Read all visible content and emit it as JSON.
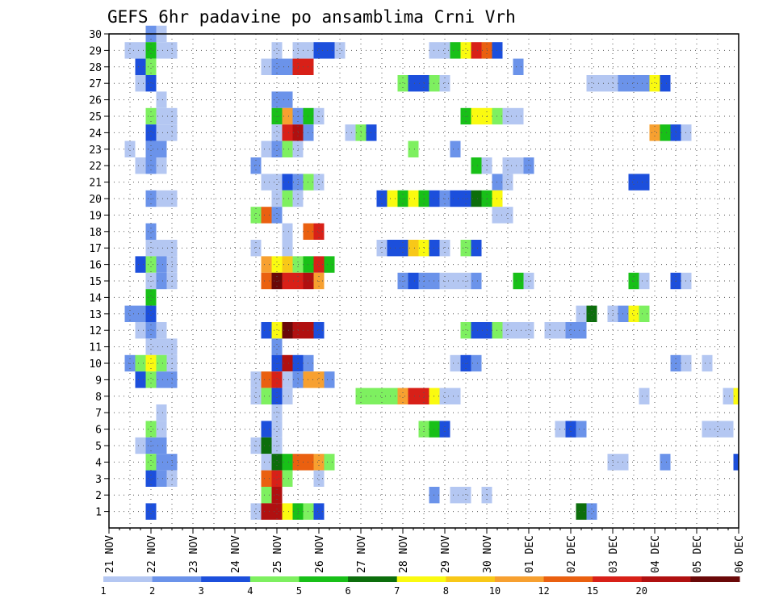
{
  "chart_data": {
    "type": "heatmap",
    "title": "GEFS 6hr padavine po ansamblima Crni Vrh",
    "xlabel": "",
    "ylabel": "",
    "x_unit": "6-hour step",
    "xlim": [
      0,
      60
    ],
    "x_ticks": [
      {
        "x": 0,
        "label": "21 NOV"
      },
      {
        "x": 4,
        "label": "22 NOV"
      },
      {
        "x": 8,
        "label": "23 NOV"
      },
      {
        "x": 12,
        "label": "24 NOV"
      },
      {
        "x": 16,
        "label": "25 NOV"
      },
      {
        "x": 20,
        "label": "26 NOV"
      },
      {
        "x": 24,
        "label": "27 NOV"
      },
      {
        "x": 28,
        "label": "28 NOV"
      },
      {
        "x": 32,
        "label": "29 NOV"
      },
      {
        "x": 36,
        "label": "30 NOV"
      },
      {
        "x": 40,
        "label": "01 DEC"
      },
      {
        "x": 44,
        "label": "02 DEC"
      },
      {
        "x": 48,
        "label": "03 DEC"
      },
      {
        "x": 52,
        "label": "04 DEC"
      },
      {
        "x": 56,
        "label": "05 DEC"
      },
      {
        "x": 60,
        "label": "06 DEC"
      }
    ],
    "ylim": [
      0,
      30
    ],
    "y_ticks": [
      1,
      2,
      3,
      4,
      5,
      6,
      7,
      8,
      9,
      10,
      11,
      12,
      13,
      14,
      15,
      16,
      17,
      18,
      19,
      20,
      21,
      22,
      23,
      24,
      25,
      26,
      27,
      28,
      29,
      30
    ],
    "grid": true,
    "colorbar": {
      "position": "bottom",
      "bounds_labels": [
        "1",
        "2",
        "3",
        "4",
        "5",
        "6",
        "7",
        "8",
        "10",
        "12",
        "15",
        "20",
        ""
      ],
      "colors": [
        "#b4c7f2",
        "#6b93ea",
        "#1c4fdc",
        "#7ef060",
        "#18c018",
        "#0c6e0c",
        "#fafa10",
        "#f8c818",
        "#f7a030",
        "#ea6010",
        "#d82018",
        "#b01010",
        "#6a0808"
      ]
    },
    "cells": [
      [
        4,
        30,
        2
      ],
      [
        5,
        30,
        1
      ],
      [
        2,
        29,
        1
      ],
      [
        3,
        29,
        1
      ],
      [
        4,
        29,
        5
      ],
      [
        5,
        29,
        1
      ],
      [
        6,
        29,
        1
      ],
      [
        16,
        29,
        1
      ],
      [
        18,
        29,
        1
      ],
      [
        19,
        29,
        1
      ],
      [
        20,
        29,
        3
      ],
      [
        21,
        29,
        3
      ],
      [
        22,
        29,
        1
      ],
      [
        31,
        29,
        1
      ],
      [
        32,
        29,
        1
      ],
      [
        33,
        29,
        5
      ],
      [
        34,
        29,
        7
      ],
      [
        35,
        29,
        11
      ],
      [
        36,
        29,
        10
      ],
      [
        37,
        29,
        3
      ],
      [
        3,
        28,
        3
      ],
      [
        4,
        28,
        4
      ],
      [
        15,
        28,
        1
      ],
      [
        16,
        28,
        2
      ],
      [
        17,
        28,
        2
      ],
      [
        18,
        28,
        11
      ],
      [
        19,
        28,
        11
      ],
      [
        39,
        28,
        2
      ],
      [
        3,
        27,
        1
      ],
      [
        4,
        27,
        3
      ],
      [
        28,
        27,
        4
      ],
      [
        29,
        27,
        3
      ],
      [
        30,
        27,
        3
      ],
      [
        31,
        27,
        4
      ],
      [
        32,
        27,
        1
      ],
      [
        46,
        27,
        1
      ],
      [
        47,
        27,
        1
      ],
      [
        48,
        27,
        1
      ],
      [
        49,
        27,
        2
      ],
      [
        50,
        27,
        2
      ],
      [
        51,
        27,
        2
      ],
      [
        52,
        27,
        7
      ],
      [
        53,
        27,
        3
      ],
      [
        5,
        26,
        1
      ],
      [
        16,
        26,
        2
      ],
      [
        17,
        26,
        2
      ],
      [
        4,
        25,
        4
      ],
      [
        5,
        25,
        1
      ],
      [
        6,
        25,
        1
      ],
      [
        16,
        25,
        5
      ],
      [
        17,
        25,
        9
      ],
      [
        18,
        25,
        2
      ],
      [
        19,
        25,
        5
      ],
      [
        20,
        25,
        1
      ],
      [
        34,
        25,
        5
      ],
      [
        35,
        25,
        7
      ],
      [
        36,
        25,
        7
      ],
      [
        37,
        25,
        4
      ],
      [
        38,
        25,
        1
      ],
      [
        39,
        25,
        1
      ],
      [
        4,
        24,
        3
      ],
      [
        5,
        24,
        1
      ],
      [
        6,
        24,
        1
      ],
      [
        16,
        24,
        1
      ],
      [
        17,
        24,
        11
      ],
      [
        18,
        24,
        12
      ],
      [
        19,
        24,
        2
      ],
      [
        23,
        24,
        1
      ],
      [
        24,
        24,
        4
      ],
      [
        25,
        24,
        3
      ],
      [
        52,
        24,
        9
      ],
      [
        53,
        24,
        5
      ],
      [
        54,
        24,
        3
      ],
      [
        55,
        24,
        1
      ],
      [
        2,
        23,
        1
      ],
      [
        4,
        23,
        2
      ],
      [
        5,
        23,
        2
      ],
      [
        15,
        23,
        1
      ],
      [
        16,
        23,
        2
      ],
      [
        17,
        23,
        4
      ],
      [
        18,
        23,
        1
      ],
      [
        29,
        23,
        4
      ],
      [
        33,
        23,
        2
      ],
      [
        3,
        22,
        1
      ],
      [
        4,
        22,
        2
      ],
      [
        5,
        22,
        1
      ],
      [
        14,
        22,
        2
      ],
      [
        35,
        22,
        5
      ],
      [
        36,
        22,
        1
      ],
      [
        38,
        22,
        1
      ],
      [
        39,
        22,
        1
      ],
      [
        40,
        22,
        2
      ],
      [
        15,
        21,
        1
      ],
      [
        16,
        21,
        1
      ],
      [
        17,
        21,
        3
      ],
      [
        18,
        21,
        2
      ],
      [
        19,
        21,
        4
      ],
      [
        20,
        21,
        1
      ],
      [
        37,
        21,
        2
      ],
      [
        38,
        21,
        1
      ],
      [
        50,
        21,
        3
      ],
      [
        51,
        21,
        3
      ],
      [
        4,
        20,
        2
      ],
      [
        5,
        20,
        1
      ],
      [
        6,
        20,
        1
      ],
      [
        16,
        20,
        1
      ],
      [
        17,
        20,
        4
      ],
      [
        18,
        20,
        1
      ],
      [
        26,
        20,
        3
      ],
      [
        27,
        20,
        7
      ],
      [
        28,
        20,
        5
      ],
      [
        29,
        20,
        7
      ],
      [
        30,
        20,
        5
      ],
      [
        31,
        20,
        3
      ],
      [
        32,
        20,
        2
      ],
      [
        33,
        20,
        3
      ],
      [
        34,
        20,
        3
      ],
      [
        35,
        20,
        6
      ],
      [
        36,
        20,
        5
      ],
      [
        37,
        20,
        7
      ],
      [
        14,
        19,
        4
      ],
      [
        15,
        19,
        10
      ],
      [
        16,
        19,
        2
      ],
      [
        37,
        19,
        1
      ],
      [
        38,
        19,
        1
      ],
      [
        4,
        18,
        2
      ],
      [
        17,
        18,
        1
      ],
      [
        19,
        18,
        10
      ],
      [
        20,
        18,
        11
      ],
      [
        4,
        17,
        1
      ],
      [
        5,
        17,
        1
      ],
      [
        6,
        17,
        1
      ],
      [
        14,
        17,
        1
      ],
      [
        17,
        17,
        1
      ],
      [
        26,
        17,
        1
      ],
      [
        27,
        17,
        3
      ],
      [
        28,
        17,
        3
      ],
      [
        29,
        17,
        8
      ],
      [
        30,
        17,
        7
      ],
      [
        31,
        17,
        3
      ],
      [
        32,
        17,
        1
      ],
      [
        34,
        17,
        4
      ],
      [
        35,
        17,
        3
      ],
      [
        3,
        16,
        3
      ],
      [
        4,
        16,
        4
      ],
      [
        5,
        16,
        2
      ],
      [
        6,
        16,
        1
      ],
      [
        15,
        16,
        9
      ],
      [
        16,
        16,
        7
      ],
      [
        17,
        16,
        8
      ],
      [
        18,
        16,
        4
      ],
      [
        19,
        16,
        5
      ],
      [
        20,
        16,
        11
      ],
      [
        21,
        16,
        5
      ],
      [
        4,
        15,
        1
      ],
      [
        5,
        15,
        2
      ],
      [
        6,
        15,
        1
      ],
      [
        15,
        15,
        10
      ],
      [
        16,
        15,
        13
      ],
      [
        17,
        15,
        11
      ],
      [
        18,
        15,
        11
      ],
      [
        19,
        15,
        12
      ],
      [
        20,
        15,
        9
      ],
      [
        28,
        15,
        2
      ],
      [
        29,
        15,
        3
      ],
      [
        30,
        15,
        2
      ],
      [
        31,
        15,
        2
      ],
      [
        32,
        15,
        1
      ],
      [
        33,
        15,
        1
      ],
      [
        34,
        15,
        1
      ],
      [
        35,
        15,
        2
      ],
      [
        39,
        15,
        5
      ],
      [
        40,
        15,
        1
      ],
      [
        50,
        15,
        5
      ],
      [
        51,
        15,
        1
      ],
      [
        54,
        15,
        3
      ],
      [
        55,
        15,
        1
      ],
      [
        4,
        14,
        5
      ],
      [
        2,
        13,
        2
      ],
      [
        3,
        13,
        2
      ],
      [
        4,
        13,
        3
      ],
      [
        45,
        13,
        1
      ],
      [
        46,
        13,
        6
      ],
      [
        48,
        13,
        1
      ],
      [
        49,
        13,
        2
      ],
      [
        50,
        13,
        7
      ],
      [
        51,
        13,
        4
      ],
      [
        3,
        12,
        1
      ],
      [
        4,
        12,
        2
      ],
      [
        5,
        12,
        1
      ],
      [
        15,
        12,
        3
      ],
      [
        16,
        12,
        7
      ],
      [
        17,
        12,
        13
      ],
      [
        18,
        12,
        12
      ],
      [
        19,
        12,
        12
      ],
      [
        20,
        12,
        3
      ],
      [
        34,
        12,
        4
      ],
      [
        35,
        12,
        3
      ],
      [
        36,
        12,
        3
      ],
      [
        37,
        12,
        4
      ],
      [
        38,
        12,
        1
      ],
      [
        39,
        12,
        1
      ],
      [
        40,
        12,
        1
      ],
      [
        42,
        12,
        1
      ],
      [
        43,
        12,
        1
      ],
      [
        44,
        12,
        2
      ],
      [
        45,
        12,
        2
      ],
      [
        4,
        11,
        1
      ],
      [
        5,
        11,
        1
      ],
      [
        6,
        11,
        1
      ],
      [
        16,
        11,
        2
      ],
      [
        2,
        10,
        2
      ],
      [
        3,
        10,
        4
      ],
      [
        4,
        10,
        7
      ],
      [
        5,
        10,
        4
      ],
      [
        6,
        10,
        1
      ],
      [
        16,
        10,
        3
      ],
      [
        17,
        10,
        12
      ],
      [
        18,
        10,
        3
      ],
      [
        19,
        10,
        2
      ],
      [
        33,
        10,
        1
      ],
      [
        34,
        10,
        3
      ],
      [
        35,
        10,
        2
      ],
      [
        54,
        10,
        2
      ],
      [
        55,
        10,
        1
      ],
      [
        57,
        10,
        1
      ],
      [
        3,
        9,
        3
      ],
      [
        4,
        9,
        4
      ],
      [
        5,
        9,
        2
      ],
      [
        6,
        9,
        2
      ],
      [
        14,
        9,
        1
      ],
      [
        15,
        9,
        10
      ],
      [
        16,
        9,
        11
      ],
      [
        17,
        9,
        1
      ],
      [
        18,
        9,
        2
      ],
      [
        19,
        9,
        9
      ],
      [
        20,
        9,
        9
      ],
      [
        21,
        9,
        2
      ],
      [
        14,
        8,
        1
      ],
      [
        15,
        8,
        4
      ],
      [
        16,
        8,
        3
      ],
      [
        17,
        8,
        1
      ],
      [
        24,
        8,
        4
      ],
      [
        25,
        8,
        4
      ],
      [
        26,
        8,
        4
      ],
      [
        27,
        8,
        4
      ],
      [
        28,
        8,
        9
      ],
      [
        29,
        8,
        11
      ],
      [
        30,
        8,
        11
      ],
      [
        31,
        8,
        7
      ],
      [
        32,
        8,
        1
      ],
      [
        33,
        8,
        1
      ],
      [
        51,
        8,
        1
      ],
      [
        59,
        8,
        1
      ],
      [
        60,
        8,
        7
      ],
      [
        5,
        7,
        1
      ],
      [
        16,
        7,
        1
      ],
      [
        4,
        6,
        4
      ],
      [
        5,
        6,
        1
      ],
      [
        15,
        6,
        3
      ],
      [
        16,
        6,
        1
      ],
      [
        30,
        6,
        4
      ],
      [
        31,
        6,
        5
      ],
      [
        32,
        6,
        3
      ],
      [
        43,
        6,
        1
      ],
      [
        44,
        6,
        3
      ],
      [
        45,
        6,
        2
      ],
      [
        57,
        6,
        1
      ],
      [
        58,
        6,
        1
      ],
      [
        59,
        6,
        1
      ],
      [
        3,
        5,
        1
      ],
      [
        4,
        5,
        2
      ],
      [
        5,
        5,
        2
      ],
      [
        14,
        5,
        1
      ],
      [
        15,
        5,
        6
      ],
      [
        16,
        5,
        1
      ],
      [
        4,
        4,
        4
      ],
      [
        5,
        4,
        2
      ],
      [
        6,
        4,
        2
      ],
      [
        15,
        4,
        1
      ],
      [
        16,
        4,
        6
      ],
      [
        17,
        4,
        5
      ],
      [
        18,
        4,
        10
      ],
      [
        19,
        4,
        10
      ],
      [
        20,
        4,
        9
      ],
      [
        21,
        4,
        4
      ],
      [
        48,
        4,
        1
      ],
      [
        49,
        4,
        1
      ],
      [
        53,
        4,
        2
      ],
      [
        60,
        4,
        3
      ],
      [
        4,
        3,
        3
      ],
      [
        5,
        3,
        2
      ],
      [
        6,
        3,
        1
      ],
      [
        15,
        3,
        10
      ],
      [
        16,
        3,
        11
      ],
      [
        17,
        3,
        4
      ],
      [
        20,
        3,
        1
      ],
      [
        15,
        2,
        4
      ],
      [
        16,
        2,
        12
      ],
      [
        31,
        2,
        2
      ],
      [
        33,
        2,
        1
      ],
      [
        34,
        2,
        1
      ],
      [
        36,
        2,
        1
      ],
      [
        4,
        1,
        3
      ],
      [
        14,
        1,
        1
      ],
      [
        15,
        1,
        12
      ],
      [
        16,
        1,
        12
      ],
      [
        17,
        1,
        7
      ],
      [
        18,
        1,
        5
      ],
      [
        19,
        1,
        4
      ],
      [
        20,
        1,
        3
      ],
      [
        45,
        1,
        6
      ],
      [
        46,
        1,
        2
      ]
    ]
  }
}
